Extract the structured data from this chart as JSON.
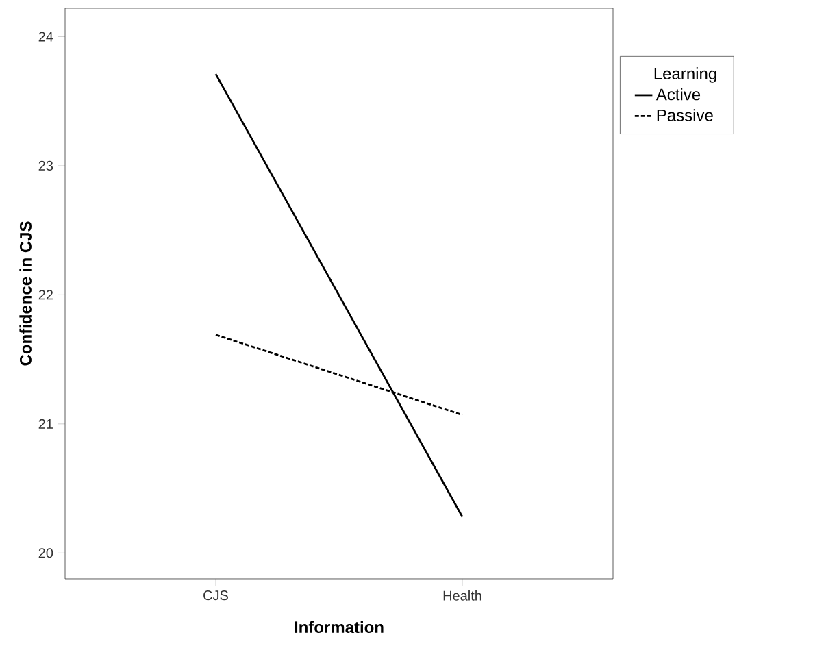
{
  "chart_data": {
    "type": "line",
    "xlabel": "Information",
    "ylabel": "Confidence in CJS",
    "legend_title": "Learning",
    "categories": [
      "CJS",
      "Health"
    ],
    "series": [
      {
        "name": "Active",
        "color": "#000000",
        "line_style": "solid",
        "values": [
          23.71,
          20.28
        ]
      },
      {
        "name": "Passive",
        "color": "#000000",
        "line_style": "dashed",
        "values": [
          21.69,
          21.07
        ]
      }
    ],
    "ylim": [
      19.8,
      24.22
    ],
    "yticks": [
      20,
      21,
      22,
      23,
      24
    ],
    "grid": false,
    "legend": "top right",
    "marker": "none"
  }
}
